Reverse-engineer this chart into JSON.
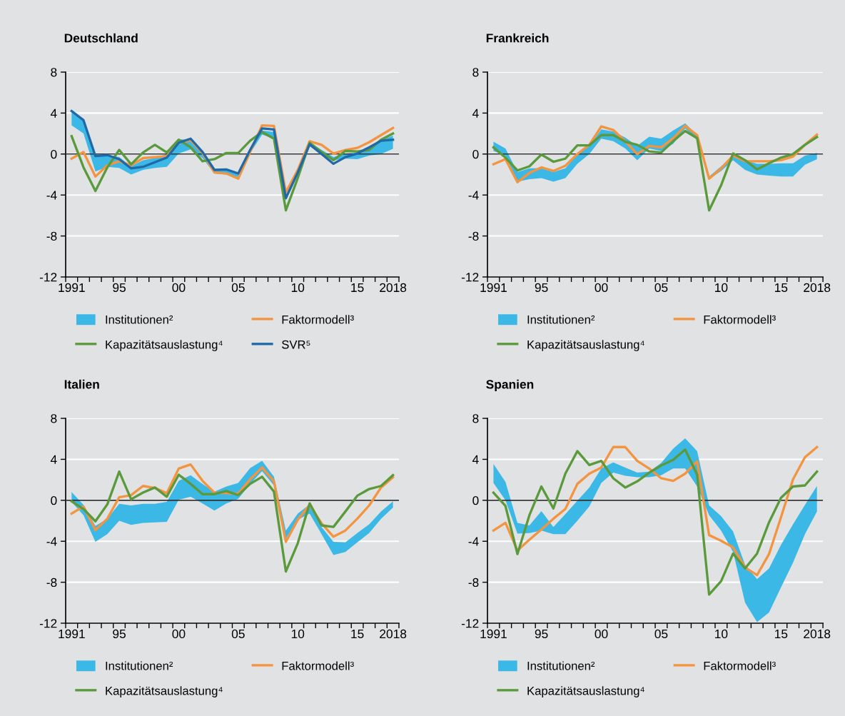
{
  "chart_data": [
    {
      "type": "line",
      "title": "Deutschland",
      "categories": [
        "1991",
        null,
        null,
        null,
        "95",
        null,
        null,
        null,
        null,
        "00",
        null,
        null,
        null,
        null,
        "05",
        null,
        null,
        null,
        null,
        "10",
        null,
        null,
        null,
        null,
        "15",
        null,
        null,
        "2018"
      ],
      "ylim": [
        -12,
        8
      ],
      "yticks": [
        -12,
        -8,
        -4,
        0,
        4,
        8
      ],
      "grid": "y",
      "legend": "bottom",
      "ref_lines": [
        {
          "axis": "y",
          "value": 0,
          "color": "#333333"
        }
      ],
      "series": [
        {
          "name": "Institutionen²",
          "type": "area",
          "color": "#3bb8e6",
          "values": [
            null,
            null,
            null,
            null,
            null,
            null,
            null,
            null,
            null,
            null,
            null,
            null,
            null,
            null,
            null,
            null,
            null,
            null,
            null,
            null,
            null,
            null,
            null,
            null,
            null,
            null,
            null,
            null
          ],
          "upper": [
            4.2,
            3.4,
            -0.05,
            -0.1,
            -0.3,
            -1.2,
            -0.6,
            -0.4,
            0,
            1.45,
            1.4,
            0.2,
            -1.45,
            -1.55,
            -1.8,
            0.4,
            2.3,
            2.15,
            -4.1,
            -1.8,
            1.1,
            0.4,
            -0.3,
            0.05,
            0.15,
            0.75,
            1.35,
            1.8
          ],
          "lower": [
            2.8,
            2.0,
            -1.7,
            -1.25,
            -1.35,
            -2.0,
            -1.55,
            -1.35,
            -1.25,
            0.05,
            0.45,
            -0.4,
            -1.9,
            -2.0,
            -2.25,
            0.05,
            1.9,
            1.5,
            -4.55,
            -2.0,
            0.75,
            0,
            -0.6,
            -0.45,
            -0.5,
            -0.15,
            0,
            0.5
          ]
        },
        {
          "name": "Faktormodell³",
          "color": "#f39440",
          "values": [
            -0.45,
            0.2,
            -2.2,
            -1.1,
            -0.7,
            -1.1,
            -0.4,
            -0.3,
            -0.2,
            1.1,
            1.35,
            0.1,
            -1.8,
            -1.9,
            -2.4,
            0.2,
            2.8,
            2.75,
            -3.75,
            -1.55,
            1.25,
            0.9,
            0.05,
            0.4,
            0.6,
            1.15,
            1.85,
            2.55
          ]
        },
        {
          "name": "Kapazitätsauslastung⁴",
          "color": "#5a9a3c",
          "values": [
            1.75,
            -1.3,
            -3.6,
            -1.3,
            0.4,
            -1.0,
            0.15,
            0.9,
            0.15,
            1.4,
            0.65,
            -0.7,
            -0.5,
            0.1,
            0.1,
            1.3,
            2.15,
            1.5,
            -5.5,
            -2.35,
            1.1,
            0.2,
            -0.6,
            0.3,
            0.25,
            0.4,
            1.4,
            2.0
          ]
        },
        {
          "name": "SVR⁵",
          "color": "#1f69a8",
          "values": [
            4.2,
            3.3,
            -0.2,
            -0.1,
            -0.5,
            -1.4,
            -1.25,
            -0.8,
            -0.35,
            1.1,
            1.5,
            0.2,
            -1.55,
            -1.5,
            -1.9,
            0.4,
            2.5,
            2.4,
            -4.3,
            -1.8,
            0.95,
            0,
            -0.95,
            -0.3,
            0.05,
            0.65,
            1.3,
            1.4
          ]
        }
      ]
    },
    {
      "type": "line",
      "title": "Frankreich",
      "categories": [
        "1991",
        null,
        null,
        null,
        "95",
        null,
        null,
        null,
        null,
        "00",
        null,
        null,
        null,
        null,
        "05",
        null,
        null,
        null,
        null,
        "10",
        null,
        null,
        null,
        null,
        "15",
        null,
        null,
        "2018"
      ],
      "ylim": [
        -12,
        8
      ],
      "yticks": [
        -12,
        -8,
        -4,
        0,
        4,
        8
      ],
      "grid": "y",
      "legend": "bottom",
      "ref_lines": [
        {
          "axis": "y",
          "value": 0,
          "color": "#333333"
        }
      ],
      "series": [
        {
          "name": "Institutionen²",
          "type": "area",
          "color": "#3bb8e6",
          "values": [
            null,
            null,
            null,
            null,
            null,
            null,
            null,
            null,
            null,
            null,
            null,
            null,
            null,
            null,
            null,
            null,
            null,
            null,
            null,
            null,
            null,
            null,
            null,
            null,
            null,
            null,
            null,
            null
          ],
          "upper": [
            1.2,
            0.55,
            -1.75,
            -1.4,
            -1.4,
            -1.75,
            -1.4,
            0,
            0.8,
            2.4,
            2.2,
            1.6,
            0.8,
            1.7,
            1.5,
            2.3,
            3.0,
            1.85,
            -2.2,
            -1.2,
            -0.15,
            -0.6,
            -0.95,
            -0.95,
            -0.9,
            -0.9,
            -0.15,
            0.1
          ],
          "lower": [
            0.3,
            -0.15,
            -2.7,
            -2.45,
            -2.35,
            -2.7,
            -2.35,
            -0.95,
            0,
            1.5,
            1.25,
            0.55,
            -0.6,
            0.55,
            0.3,
            1.0,
            2.5,
            1.35,
            -2.45,
            -1.65,
            -0.6,
            -1.55,
            -2.0,
            -2.1,
            -2.2,
            -2.2,
            -1.05,
            -0.5
          ]
        },
        {
          "name": "Faktormodell³",
          "color": "#f39440",
          "values": [
            -1.0,
            -0.5,
            -2.75,
            -1.85,
            -1.3,
            -1.65,
            -1.15,
            0,
            0.9,
            2.7,
            2.35,
            1.25,
            0,
            0.8,
            0.65,
            1.55,
            2.75,
            1.85,
            -2.4,
            -1.4,
            -0.15,
            -0.7,
            -0.7,
            -0.7,
            -0.6,
            -0.25,
            0.9,
            1.9
          ]
        },
        {
          "name": "Kapazitätsauslastung⁴",
          "color": "#5a9a3c",
          "values": [
            0.65,
            -0.35,
            -1.6,
            -1.2,
            -0.05,
            -0.75,
            -0.45,
            0.85,
            0.85,
            1.85,
            1.85,
            1.2,
            0.9,
            0.25,
            0.15,
            1.25,
            2.25,
            1.55,
            -5.5,
            -3.05,
            0.05,
            -0.6,
            -1.5,
            -0.9,
            -0.35,
            0,
            0.9,
            1.65
          ]
        }
      ]
    },
    {
      "type": "line",
      "title": "Italien",
      "categories": [
        "1991",
        null,
        null,
        null,
        "95",
        null,
        null,
        null,
        null,
        "00",
        null,
        null,
        null,
        null,
        "05",
        null,
        null,
        null,
        null,
        "10",
        null,
        null,
        null,
        null,
        "15",
        null,
        null,
        "2018"
      ],
      "ylim": [
        -12,
        8
      ],
      "yticks": [
        -12,
        -8,
        -4,
        0,
        4,
        8
      ],
      "grid": "y",
      "legend": "bottom",
      "ref_lines": [
        {
          "axis": "y",
          "value": 0,
          "color": "#333333"
        }
      ],
      "series": [
        {
          "name": "Institutionen²",
          "type": "area",
          "color": "#3bb8e6",
          "values": [
            null,
            null,
            null,
            null,
            null,
            null,
            null,
            null,
            null,
            null,
            null,
            null,
            null,
            null,
            null,
            null,
            null,
            null,
            null,
            null,
            null,
            null,
            null,
            null,
            null,
            null,
            null,
            null
          ],
          "upper": [
            0.8,
            -0.45,
            -2.5,
            -1.8,
            -0.35,
            -0.5,
            -0.35,
            -0.35,
            -0.15,
            1.9,
            2.45,
            1.6,
            0.85,
            1.35,
            1.7,
            3.15,
            3.85,
            2.3,
            -2.95,
            -1.3,
            -0.4,
            -2.6,
            -4.05,
            -4.1,
            -3.2,
            -2.35,
            -1.1,
            -0.1
          ],
          "lower": [
            -0.15,
            -1.45,
            -4.05,
            -3.3,
            -2.0,
            -2.4,
            -2.2,
            -2.15,
            -2.1,
            0.05,
            0.35,
            -0.3,
            -1.0,
            -0.3,
            0.15,
            1.6,
            2.85,
            1.45,
            -3.75,
            -1.9,
            -1.3,
            -3.3,
            -5.35,
            -5.05,
            -4.1,
            -3.2,
            -1.8,
            -0.7
          ]
        },
        {
          "name": "Faktormodell³",
          "color": "#f39440",
          "values": [
            -1.3,
            -0.6,
            -2.9,
            -1.8,
            0.3,
            0.5,
            1.4,
            1.2,
            0.7,
            3.1,
            3.5,
            1.9,
            0.75,
            0.7,
            0.65,
            2.05,
            3.2,
            1.85,
            -4.05,
            -1.9,
            -0.45,
            -2.25,
            -3.55,
            -2.95,
            -1.8,
            -0.5,
            1.25,
            2.25
          ]
        },
        {
          "name": "Kapazitätsauslastung⁴",
          "color": "#5a9a3c",
          "values": [
            -0.1,
            -0.85,
            -2.05,
            -0.4,
            2.8,
            0.1,
            0.75,
            1.25,
            0.35,
            2.5,
            1.6,
            0.6,
            0.6,
            0.9,
            0.5,
            1.6,
            2.3,
            0.85,
            -6.95,
            -4.2,
            -0.3,
            -2.45,
            -2.6,
            -1.1,
            0.45,
            1.1,
            1.4,
            2.45
          ]
        }
      ]
    },
    {
      "type": "line",
      "title": "Spanien",
      "categories": [
        "1991",
        null,
        null,
        null,
        "95",
        null,
        null,
        null,
        null,
        "00",
        null,
        null,
        null,
        null,
        "05",
        null,
        null,
        null,
        null,
        "10",
        null,
        null,
        null,
        null,
        "15",
        null,
        null,
        "2018"
      ],
      "ylim": [
        -12,
        8
      ],
      "yticks": [
        -12,
        -8,
        -4,
        0,
        4,
        8
      ],
      "grid": "y",
      "legend": "bottom",
      "ref_lines": [
        {
          "axis": "y",
          "value": 0,
          "color": "#333333"
        }
      ],
      "series": [
        {
          "name": "Institutionen²",
          "type": "area",
          "color": "#3bb8e6",
          "values": [
            null,
            null,
            null,
            null,
            null,
            null,
            null,
            null,
            null,
            null,
            null,
            null,
            null,
            null,
            null,
            null,
            null,
            null,
            null,
            null,
            null,
            null,
            null,
            null,
            null,
            null,
            null,
            null
          ],
          "upper": [
            3.55,
            1.8,
            -2.2,
            -2.45,
            -1.05,
            -2.6,
            -1.35,
            -0.05,
            1.25,
            3.1,
            3.7,
            3.2,
            2.7,
            2.8,
            3.65,
            5.05,
            6.05,
            4.8,
            -0.5,
            -1.55,
            -3.05,
            -6.3,
            -7.7,
            -6.65,
            -4.35,
            -2.35,
            -0.45,
            1.4
          ],
          "lower": [
            1.7,
            0,
            -3.25,
            -3.2,
            -2.95,
            -3.3,
            -3.3,
            -2.0,
            -0.6,
            1.7,
            2.7,
            2.4,
            2.25,
            2.25,
            2.45,
            3.1,
            3.1,
            1.35,
            -1.45,
            -2.95,
            -5.05,
            -10.0,
            -11.9,
            -10.95,
            -8.5,
            -6.1,
            -3.3,
            -1.1
          ]
        },
        {
          "name": "Faktormodell³",
          "color": "#f39440",
          "values": [
            -2.95,
            -2.2,
            -4.9,
            -3.85,
            -2.85,
            -1.8,
            -0.85,
            1.6,
            2.6,
            3.2,
            5.2,
            5.2,
            3.85,
            3.1,
            2.15,
            1.9,
            2.6,
            3.8,
            -3.4,
            -3.95,
            -4.6,
            -6.55,
            -7.3,
            -5.25,
            -1.65,
            2.05,
            4.2,
            5.2
          ]
        },
        {
          "name": "Kapazitätsauslastung⁴",
          "color": "#5a9a3c",
          "values": [
            0.75,
            -0.55,
            -5.25,
            -1.45,
            1.35,
            -0.8,
            2.6,
            4.8,
            3.45,
            3.85,
            2.15,
            1.25,
            1.85,
            2.7,
            3.4,
            3.95,
            4.95,
            2.5,
            -9.2,
            -7.9,
            -5.2,
            -6.65,
            -5.2,
            -2.15,
            0.25,
            1.35,
            1.45,
            2.8
          ]
        }
      ]
    }
  ]
}
